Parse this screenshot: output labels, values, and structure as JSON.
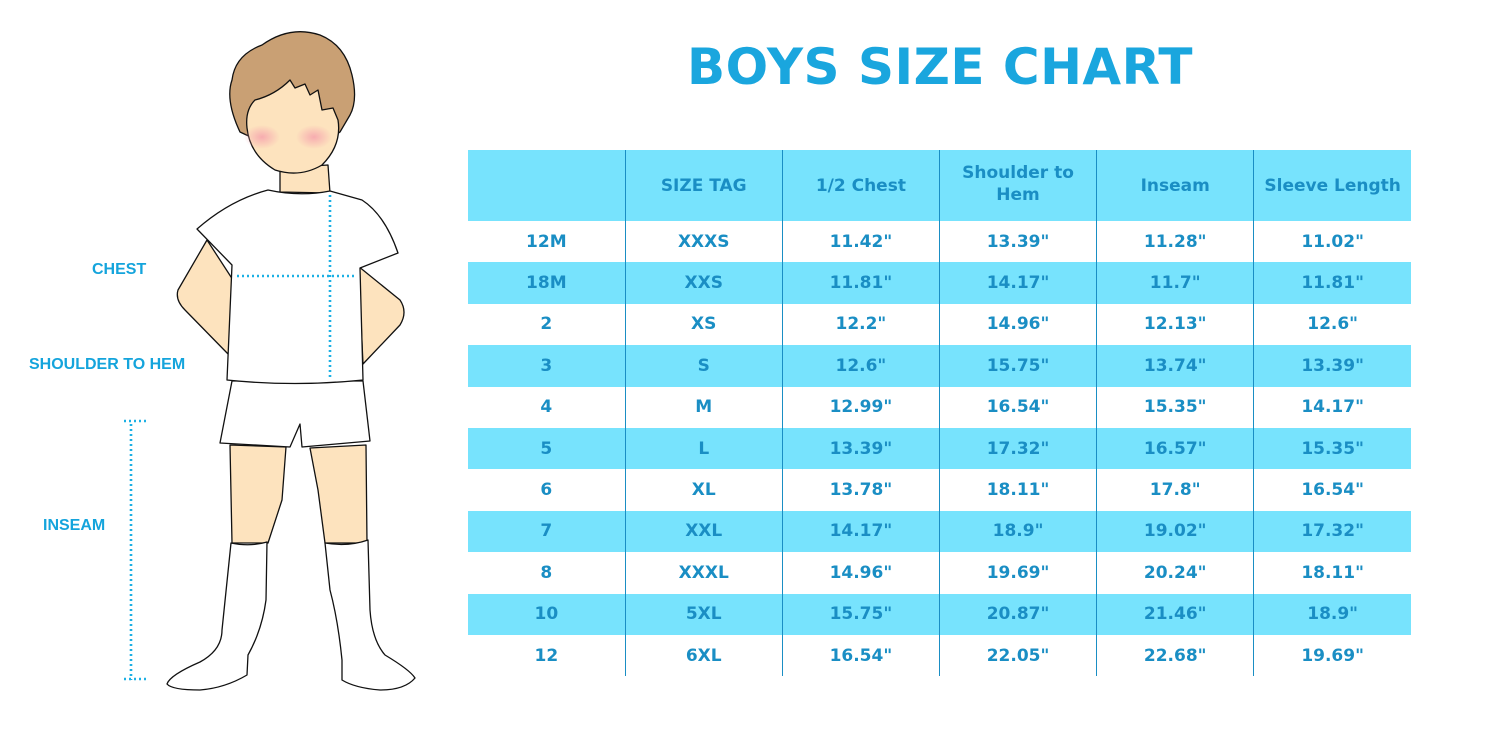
{
  "title": "BOYS SIZE CHART",
  "figure_labels": {
    "chest": "CHEST",
    "shoulder_to_hem": "SHOULDER TO HEM",
    "inseam": "INSEAM"
  },
  "colors": {
    "accent": "#1AA6DE",
    "row_highlight": "#77E3FD",
    "table_text": "#1A8EC4"
  },
  "table": {
    "headers": [
      "",
      "SIZE TAG",
      "1/2 Chest",
      "Shoulder to Hem",
      "Inseam",
      "Sleeve Length"
    ],
    "rows": [
      [
        "12M",
        "XXXS",
        "11.42\"",
        "13.39\"",
        "11.28\"",
        "11.02\""
      ],
      [
        "18M",
        "XXS",
        "11.81\"",
        "14.17\"",
        "11.7\"",
        "11.81\""
      ],
      [
        "2",
        "XS",
        "12.2\"",
        "14.96\"",
        "12.13\"",
        "12.6\""
      ],
      [
        "3",
        "S",
        "12.6\"",
        "15.75\"",
        "13.74\"",
        "13.39\""
      ],
      [
        "4",
        "M",
        "12.99\"",
        "16.54\"",
        "15.35\"",
        "14.17\""
      ],
      [
        "5",
        "L",
        "13.39\"",
        "17.32\"",
        "16.57\"",
        "15.35\""
      ],
      [
        "6",
        "XL",
        "13.78\"",
        "18.11\"",
        "17.8\"",
        "16.54\""
      ],
      [
        "7",
        "XXL",
        "14.17\"",
        "18.9\"",
        "19.02\"",
        "17.32\""
      ],
      [
        "8",
        "XXXL",
        "14.96\"",
        "19.69\"",
        "20.24\"",
        "18.11\""
      ],
      [
        "10",
        "5XL",
        "15.75\"",
        "20.87\"",
        "21.46\"",
        "18.9\""
      ],
      [
        "12",
        "6XL",
        "16.54\"",
        "22.05\"",
        "22.68\"",
        "19.69\""
      ]
    ]
  }
}
